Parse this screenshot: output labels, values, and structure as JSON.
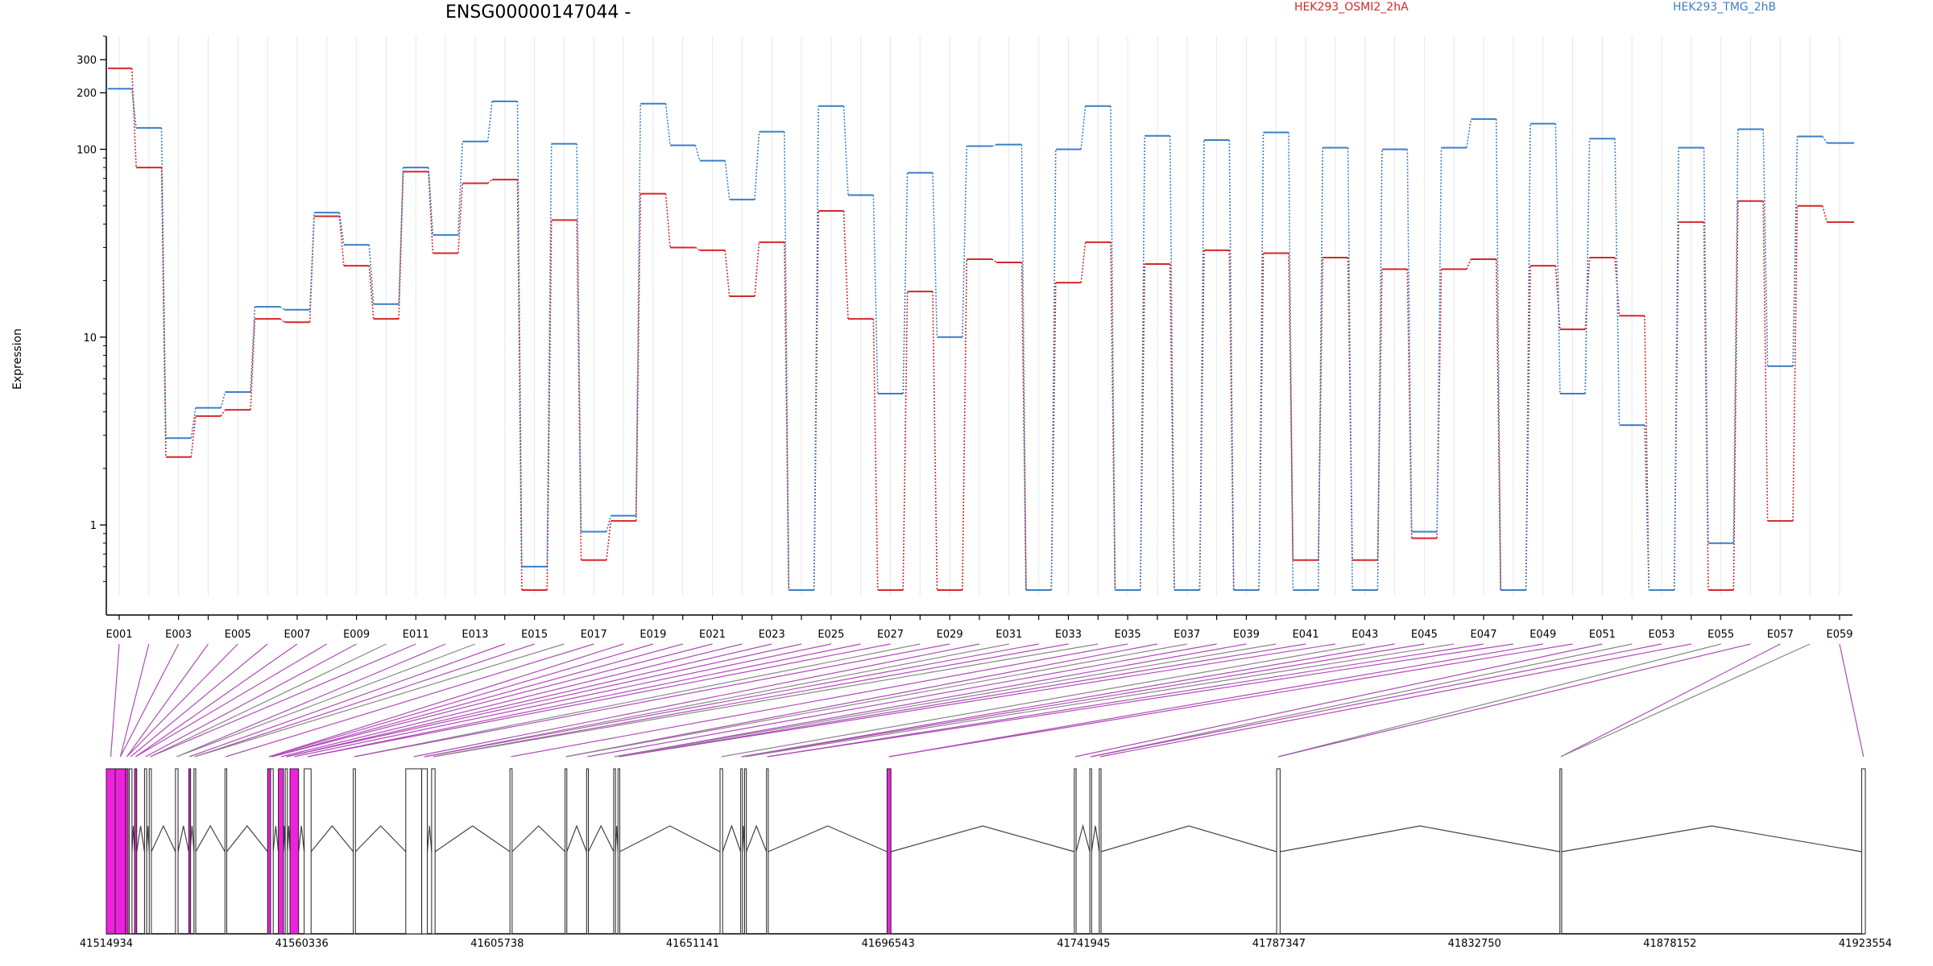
{
  "chart_data": {
    "type": "line",
    "title": "ENSG00000147044 -",
    "xlabel": "",
    "ylabel": "Expression",
    "yscale": "log",
    "ylim": [
      0.42,
      400
    ],
    "yticks": [
      1,
      10,
      100,
      200,
      300
    ],
    "grid": "vertical, light",
    "legend_placement": "top-right",
    "exons": [
      "E001",
      "E002",
      "E003",
      "E004",
      "E005",
      "E006",
      "E007",
      "E008",
      "E009",
      "E010",
      "E011",
      "E012",
      "E013",
      "E014",
      "E015",
      "E016",
      "E017",
      "E018",
      "E019",
      "E020",
      "E021",
      "E022",
      "E023",
      "E024",
      "E025",
      "E026",
      "E027",
      "E028",
      "E029",
      "E030",
      "E031",
      "E032",
      "E033",
      "E034",
      "E035",
      "E036",
      "E037",
      "E038",
      "E039",
      "E040",
      "E041",
      "E042",
      "E043",
      "E044",
      "E045",
      "E046",
      "E047",
      "E048",
      "E049",
      "E050",
      "E051",
      "E052",
      "E053",
      "E054",
      "E055",
      "E056",
      "E057",
      "E058",
      "E059"
    ],
    "exon_tick_labels": [
      "E001",
      "E003",
      "E005",
      "E007",
      "E009",
      "E011",
      "E013",
      "E015",
      "E017",
      "E019",
      "E021",
      "E023",
      "E025",
      "E027",
      "E029",
      "E031",
      "E033",
      "E035",
      "E037",
      "E039",
      "E041",
      "E043",
      "E045",
      "E047",
      "E049",
      "E051",
      "E053",
      "E055",
      "E057",
      "E059"
    ],
    "series": [
      {
        "name": "HEK293_OSMI2_2hA",
        "color": "#d62728",
        "values": [
          270,
          80,
          2.3,
          3.8,
          4.1,
          12.5,
          12,
          44,
          24,
          12.5,
          76,
          28,
          66,
          69,
          0.45,
          42,
          0.65,
          1.05,
          58,
          30,
          29,
          16.5,
          32,
          0.45,
          47,
          12.5,
          0.45,
          17.5,
          0.45,
          26,
          25,
          0.45,
          19.5,
          32,
          0.45,
          24.5,
          0.45,
          29,
          0.45,
          28,
          0.65,
          26.5,
          0.65,
          23,
          0.85,
          23,
          26,
          0.45,
          24,
          11,
          26.5,
          13,
          0.45,
          41,
          0.45,
          53,
          1.05,
          50,
          41
        ]
      },
      {
        "name": "HEK293_TMG_2hB",
        "color": "#3b7fc4",
        "values": [
          210,
          130,
          2.9,
          4.2,
          5.1,
          14.5,
          14,
          46,
          31,
          15,
          80,
          35,
          110,
          180,
          0.6,
          107,
          0.92,
          1.12,
          175,
          105,
          87,
          54,
          124,
          0.45,
          170,
          57,
          5,
          75,
          10,
          104,
          106,
          0.45,
          100,
          170,
          0.45,
          118,
          0.45,
          112,
          0.45,
          123,
          0.45,
          102,
          0.45,
          100,
          0.92,
          102,
          145,
          0.45,
          137,
          5,
          114,
          3.4,
          0.45,
          102,
          0.8,
          128,
          7,
          117,
          108
        ]
      }
    ],
    "gene_model": {
      "coordinate_ticks": [
        "41514934",
        "41560336",
        "41605738",
        "41651141",
        "41696543",
        "41741945",
        "41787347",
        "41832750",
        "41878152",
        "41923554"
      ],
      "coordinate_range": [
        41514934,
        41923554
      ],
      "exon_colors": {
        "differential": "#ee22dd",
        "normal": "#ffffff"
      },
      "blocks": [
        {
          "start": 41514934,
          "end": 41517000,
          "fill": "#ee22dd"
        },
        {
          "start": 41517000,
          "end": 41519400,
          "fill": "#ee22dd"
        },
        {
          "start": 41519400,
          "end": 41520000,
          "fill": "#ee22dd"
        },
        {
          "start": 41520300,
          "end": 41520900,
          "fill": "#ffffff"
        },
        {
          "start": 41521500,
          "end": 41522000,
          "fill": "#ee22dd"
        },
        {
          "start": 41523800,
          "end": 41524300,
          "fill": "#ffffff"
        },
        {
          "start": 41524900,
          "end": 41525400,
          "fill": "#ffffff"
        },
        {
          "start": 41531000,
          "end": 41531600,
          "fill": "#ffffff"
        },
        {
          "start": 41534100,
          "end": 41534400,
          "fill": "#ee22dd"
        },
        {
          "start": 41535300,
          "end": 41535700,
          "fill": "#ffffff"
        },
        {
          "start": 41542500,
          "end": 41542900,
          "fill": "#ffffff"
        },
        {
          "start": 41552400,
          "end": 41553100,
          "fill": "#ee22dd"
        },
        {
          "start": 41553100,
          "end": 41553700,
          "fill": "#ffffff"
        },
        {
          "start": 41554900,
          "end": 41556100,
          "fill": "#ee22dd"
        },
        {
          "start": 41556500,
          "end": 41557000,
          "fill": "#ffffff"
        },
        {
          "start": 41557600,
          "end": 41559600,
          "fill": "#ee22dd"
        },
        {
          "start": 41560900,
          "end": 41562500,
          "fill": "#ffffff"
        },
        {
          "start": 41572300,
          "end": 41572800,
          "fill": "#ffffff"
        },
        {
          "start": 41584500,
          "end": 41588200,
          "fill": "#ffffff"
        },
        {
          "start": 41588200,
          "end": 41589500,
          "fill": "#ffffff"
        },
        {
          "start": 41590500,
          "end": 41591300,
          "fill": "#ffffff"
        },
        {
          "start": 41608700,
          "end": 41609200,
          "fill": "#ffffff"
        },
        {
          "start": 41621500,
          "end": 41621900,
          "fill": "#ffffff"
        },
        {
          "start": 41626500,
          "end": 41626900,
          "fill": "#ffffff"
        },
        {
          "start": 41632800,
          "end": 41633200,
          "fill": "#ffffff"
        },
        {
          "start": 41633800,
          "end": 41634200,
          "fill": "#ffffff"
        },
        {
          "start": 41657500,
          "end": 41658100,
          "fill": "#ffffff"
        },
        {
          "start": 41662300,
          "end": 41662700,
          "fill": "#ffffff"
        },
        {
          "start": 41663200,
          "end": 41663600,
          "fill": "#ffffff"
        },
        {
          "start": 41668300,
          "end": 41668700,
          "fill": "#ffffff"
        },
        {
          "start": 41696300,
          "end": 41697200,
          "fill": "#ee22dd"
        },
        {
          "start": 41739800,
          "end": 41740200,
          "fill": "#ffffff"
        },
        {
          "start": 41743400,
          "end": 41743800,
          "fill": "#ffffff"
        },
        {
          "start": 41745600,
          "end": 41746000,
          "fill": "#ffffff"
        },
        {
          "start": 41786800,
          "end": 41787600,
          "fill": "#ffffff"
        },
        {
          "start": 41852600,
          "end": 41853000,
          "fill": "#ffffff"
        },
        {
          "start": 41922700,
          "end": 41923554,
          "fill": "#ffffff"
        }
      ]
    }
  }
}
